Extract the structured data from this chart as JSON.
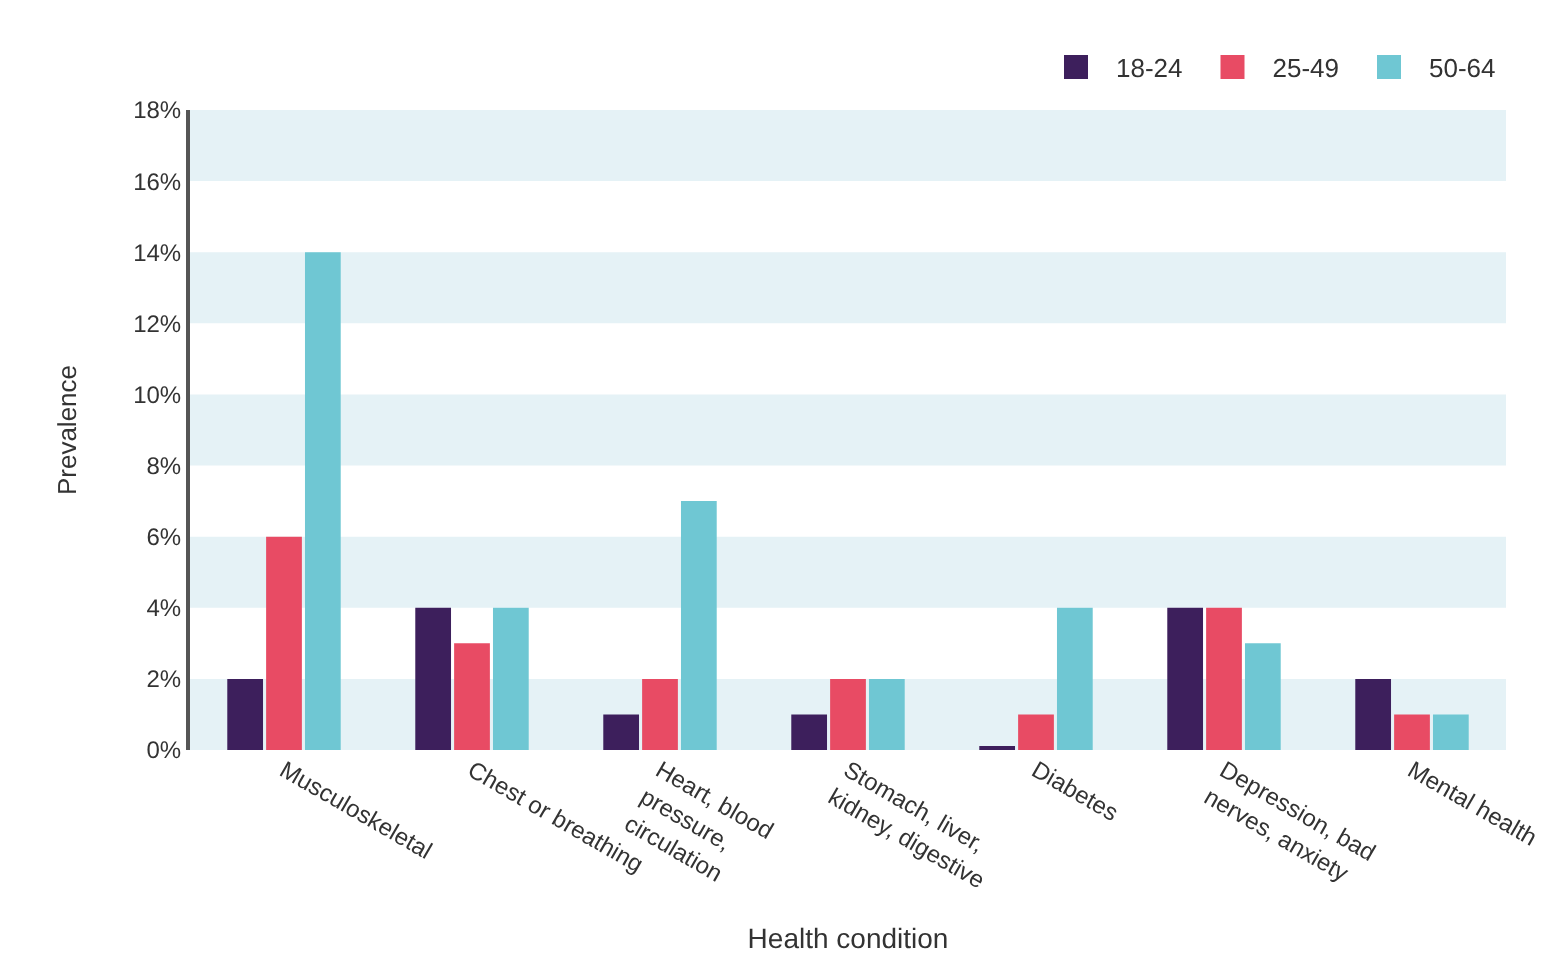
{
  "chart_data": {
    "type": "bar",
    "xlabel": "Health condition",
    "ylabel": "Prevalence",
    "categories": [
      "Musculoskeletal",
      "Chest or breathing",
      "Heart, blood pressure, circulation",
      "Stomach, liver, kidney, digestive",
      "Diabetes",
      "Depression, bad nerves, anxiety",
      "Mental health"
    ],
    "series": [
      {
        "name": "18-24",
        "color": "#3d1f5c",
        "values": [
          2,
          4,
          1,
          1,
          0.1,
          4,
          2
        ]
      },
      {
        "name": "25-49",
        "color": "#e84b64",
        "values": [
          6,
          3,
          2,
          2,
          1,
          4,
          1
        ]
      },
      {
        "name": "50-64",
        "color": "#6fc7d3",
        "values": [
          14,
          4,
          7,
          2,
          4,
          3,
          1
        ]
      }
    ],
    "ylim": [
      0,
      18
    ],
    "yticks": [
      {
        "value": 0,
        "label": "0%"
      },
      {
        "value": 2,
        "label": "2%"
      },
      {
        "value": 4,
        "label": "4%"
      },
      {
        "value": 6,
        "label": "6%"
      },
      {
        "value": 8,
        "label": "8%"
      },
      {
        "value": 10,
        "label": "10%"
      },
      {
        "value": 12,
        "label": "12%"
      },
      {
        "value": 14,
        "label": "14%"
      },
      {
        "value": 16,
        "label": "16%"
      },
      {
        "value": 18,
        "label": "18%"
      }
    ],
    "bands": [
      {
        "axis": "y",
        "from": 0,
        "to": 2,
        "color": "#e5f2f6"
      },
      {
        "axis": "y",
        "from": 4,
        "to": 6,
        "color": "#e5f2f6"
      },
      {
        "axis": "y",
        "from": 8,
        "to": 10,
        "color": "#e5f2f6"
      },
      {
        "axis": "y",
        "from": 12,
        "to": 14,
        "color": "#e5f2f6"
      },
      {
        "axis": "y",
        "from": 16,
        "to": 18,
        "color": "#e5f2f6"
      }
    ],
    "grid": false,
    "legend": "top right"
  }
}
